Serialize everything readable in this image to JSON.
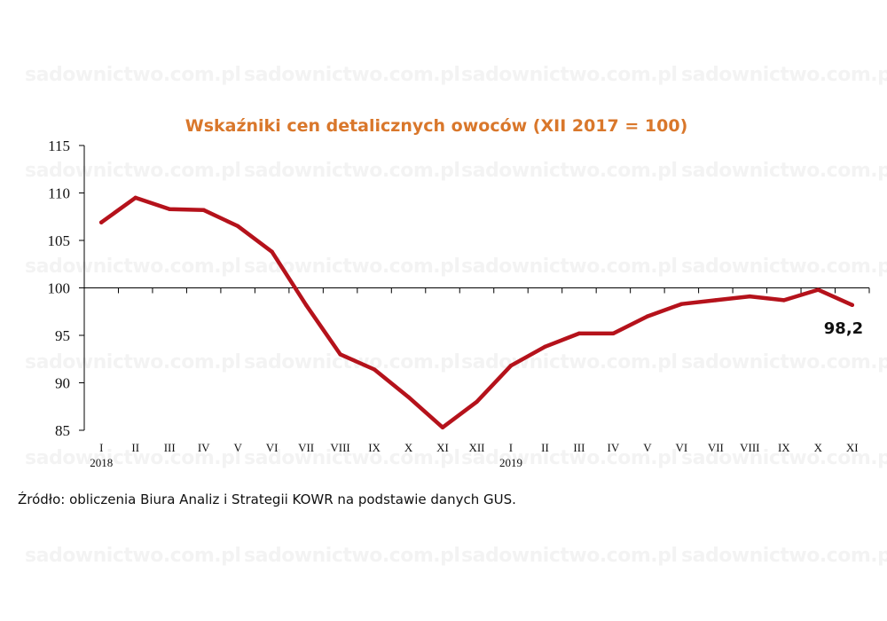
{
  "watermark": "sadownictwo.com.pl",
  "colors": {
    "title": "#d9772b",
    "line": "#b5121b",
    "axis": "#000000"
  },
  "source_text": "Źródło: obliczenia Biura Analiz i Strategii KOWR na podstawie danych GUS.",
  "chart_data": {
    "type": "line",
    "title": "Wskaźniki cen detalicznych owoców (XII 2017 = 100)",
    "xlabel": "",
    "ylabel": "",
    "categories": [
      "I",
      "II",
      "III",
      "IV",
      "V",
      "VI",
      "VII",
      "VIII",
      "IX",
      "X",
      "XI",
      "XII",
      "I",
      "II",
      "III",
      "IV",
      "V",
      "VI",
      "VII",
      "VIII",
      "IX",
      "X",
      "XI"
    ],
    "year_labels": [
      {
        "index": 0,
        "label": "2018"
      },
      {
        "index": 12,
        "label": "2019"
      }
    ],
    "series": [
      {
        "values": [
          106.9,
          109.5,
          108.3,
          108.2,
          106.5,
          103.8,
          98.2,
          93.0,
          91.4,
          88.5,
          85.3,
          88.0,
          91.8,
          93.8,
          95.2,
          95.2,
          97.0,
          98.3,
          98.7,
          99.1,
          98.7,
          99.8,
          98.2
        ]
      }
    ],
    "ylim": [
      85,
      115
    ],
    "yticks": [
      85,
      90,
      95,
      100,
      105,
      110,
      115
    ],
    "x_axis_crosses_at": 100,
    "end_label": "98,2",
    "grid": false,
    "legend": "none"
  }
}
